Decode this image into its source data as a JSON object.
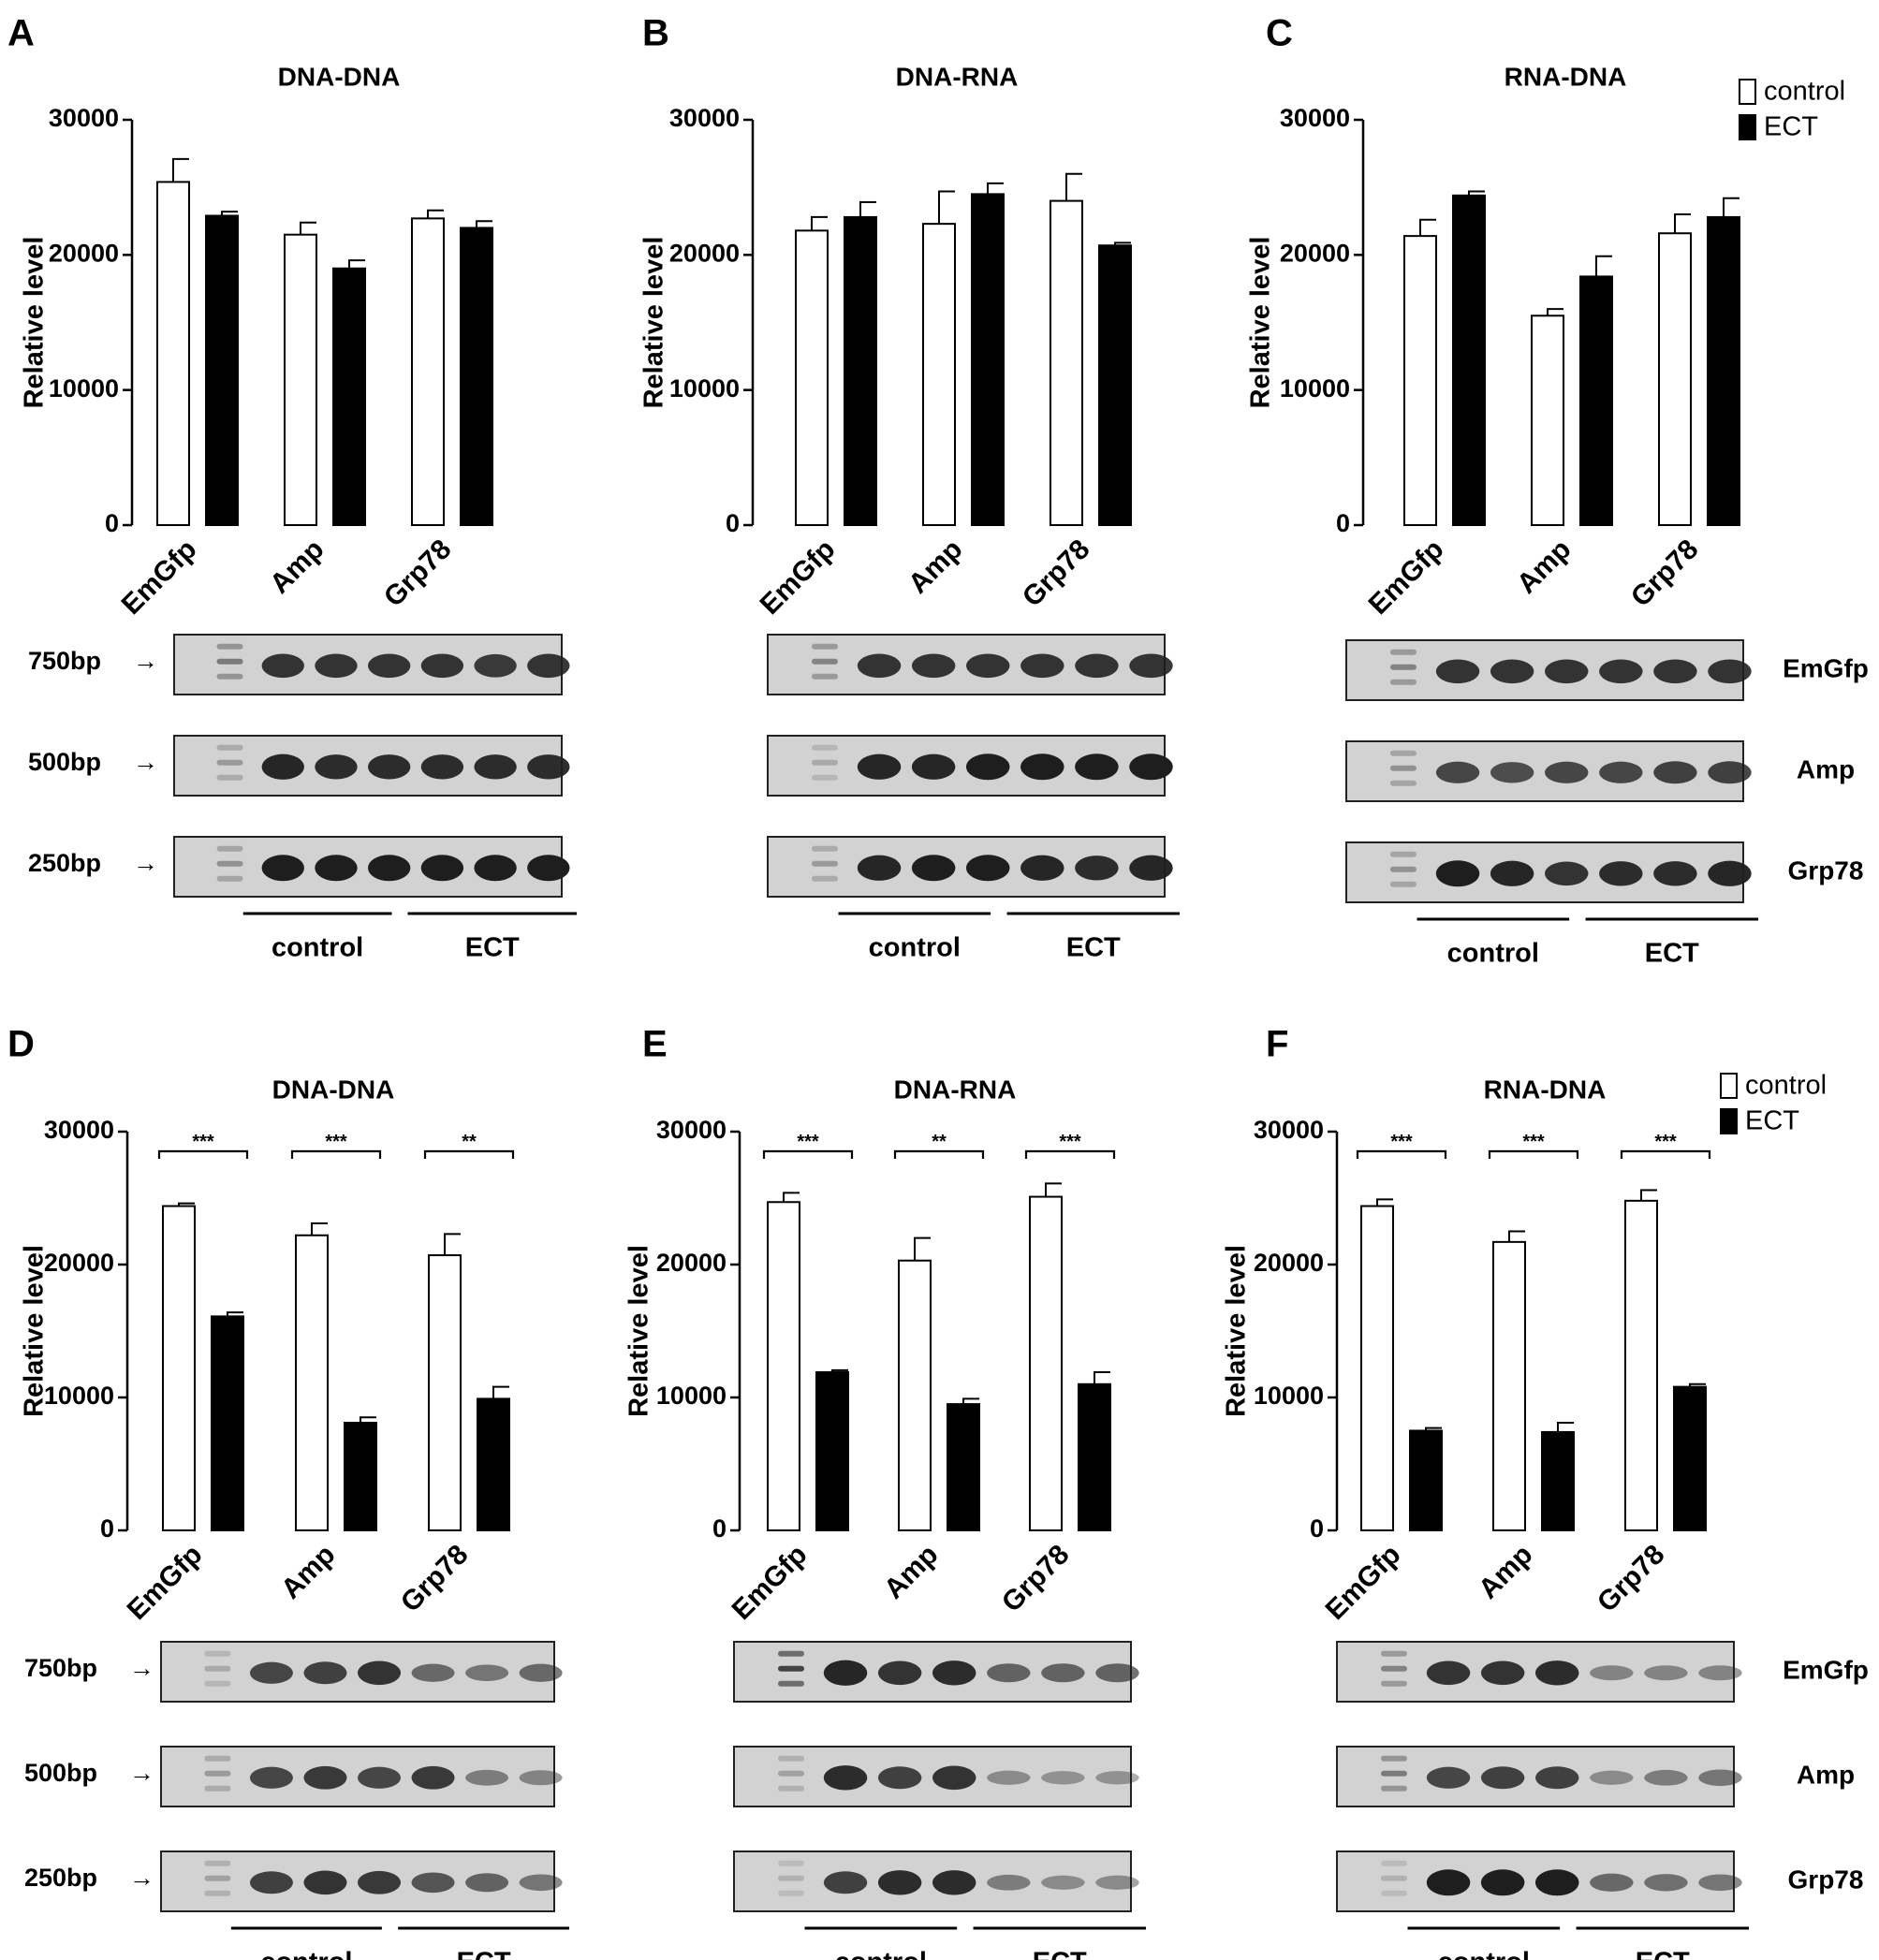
{
  "figure": {
    "legend": {
      "control": "control",
      "ect": "ECT"
    },
    "group_labels": {
      "control": "control",
      "ect": "ECT"
    },
    "y_axis_label": "Relative level",
    "categories": [
      "EmGfp",
      "Amp",
      "Grp78"
    ],
    "gene_labels": [
      "EmGfp",
      "Amp",
      "Grp78"
    ],
    "bp_labels": [
      "750bp",
      "500bp",
      "250bp"
    ],
    "colors": {
      "control": "#ffffff",
      "ect": "#000000",
      "gel_bg": "#d2d2d2",
      "band": "#1e1e1e"
    }
  },
  "chart_data": [
    {
      "panel": "A",
      "type": "bar",
      "title": "DNA-DNA",
      "categories": [
        "EmGfp",
        "Amp",
        "Grp78"
      ],
      "series": [
        {
          "name": "control",
          "values": [
            25400,
            21500,
            22700
          ],
          "errors": [
            1700,
            900,
            600
          ]
        },
        {
          "name": "ECT",
          "values": [
            22900,
            19000,
            22000
          ],
          "errors": [
            300,
            600,
            500
          ]
        }
      ],
      "ylabel": "Relative level",
      "ylim": [
        0,
        30000
      ],
      "yticks": [
        0,
        10000,
        20000,
        30000
      ],
      "significance": [],
      "legend": false,
      "show_bp": true,
      "show_genes": false
    },
    {
      "panel": "B",
      "type": "bar",
      "title": "DNA-RNA",
      "categories": [
        "EmGfp",
        "Amp",
        "Grp78"
      ],
      "series": [
        {
          "name": "control",
          "values": [
            21800,
            22300,
            24000
          ],
          "errors": [
            1000,
            2400,
            2000
          ]
        },
        {
          "name": "ECT",
          "values": [
            22800,
            24500,
            20700
          ],
          "errors": [
            1100,
            800,
            200
          ]
        }
      ],
      "ylabel": "Relative level",
      "ylim": [
        0,
        30000
      ],
      "yticks": [
        0,
        10000,
        20000,
        30000
      ],
      "significance": [],
      "legend": false,
      "show_bp": false,
      "show_genes": false
    },
    {
      "panel": "C",
      "type": "bar",
      "title": "RNA-DNA",
      "categories": [
        "EmGfp",
        "Amp",
        "Grp78"
      ],
      "series": [
        {
          "name": "control",
          "values": [
            21400,
            15500,
            21600
          ],
          "errors": [
            1200,
            500,
            1400
          ]
        },
        {
          "name": "ECT",
          "values": [
            24400,
            18400,
            22800
          ],
          "errors": [
            300,
            1500,
            1400
          ]
        }
      ],
      "ylabel": "Relative level",
      "ylim": [
        0,
        30000
      ],
      "yticks": [
        0,
        10000,
        20000,
        30000
      ],
      "significance": [],
      "legend": true,
      "show_bp": false,
      "show_genes": true
    },
    {
      "panel": "D",
      "type": "bar",
      "title": "DNA-DNA",
      "categories": [
        "EmGfp",
        "Amp",
        "Grp78"
      ],
      "series": [
        {
          "name": "control",
          "values": [
            24400,
            22200,
            20700
          ],
          "errors": [
            200,
            900,
            1600
          ]
        },
        {
          "name": "ECT",
          "values": [
            16100,
            8100,
            9900
          ],
          "errors": [
            300,
            400,
            900
          ]
        }
      ],
      "ylabel": "Relative level",
      "ylim": [
        0,
        30000
      ],
      "yticks": [
        0,
        10000,
        20000,
        30000
      ],
      "significance": [
        "***",
        "***",
        "**"
      ],
      "legend": false,
      "show_bp": true,
      "show_genes": false
    },
    {
      "panel": "E",
      "type": "bar",
      "title": "DNA-RNA",
      "categories": [
        "EmGfp",
        "Amp",
        "Grp78"
      ],
      "series": [
        {
          "name": "control",
          "values": [
            24700,
            20300,
            25100
          ],
          "errors": [
            700,
            1700,
            1000
          ]
        },
        {
          "name": "ECT",
          "values": [
            11900,
            9500,
            11000
          ],
          "errors": [
            150,
            400,
            900
          ]
        }
      ],
      "ylabel": "Relative level",
      "ylim": [
        0,
        30000
      ],
      "yticks": [
        0,
        10000,
        20000,
        30000
      ],
      "significance": [
        "***",
        "**",
        "***"
      ],
      "legend": false,
      "show_bp": false,
      "show_genes": false
    },
    {
      "panel": "F",
      "type": "bar",
      "title": "RNA-DNA",
      "categories": [
        "EmGfp",
        "Amp",
        "Grp78"
      ],
      "series": [
        {
          "name": "control",
          "values": [
            24400,
            21700,
            24800
          ],
          "errors": [
            500,
            800,
            800
          ]
        },
        {
          "name": "ECT",
          "values": [
            7500,
            7400,
            10800
          ],
          "errors": [
            200,
            700,
            200
          ]
        }
      ],
      "ylabel": "Relative level",
      "ylim": [
        0,
        30000
      ],
      "yticks": [
        0,
        10000,
        20000,
        30000
      ],
      "significance": [
        "***",
        "***",
        "***"
      ],
      "legend": true,
      "show_bp": false,
      "show_genes": true
    }
  ]
}
